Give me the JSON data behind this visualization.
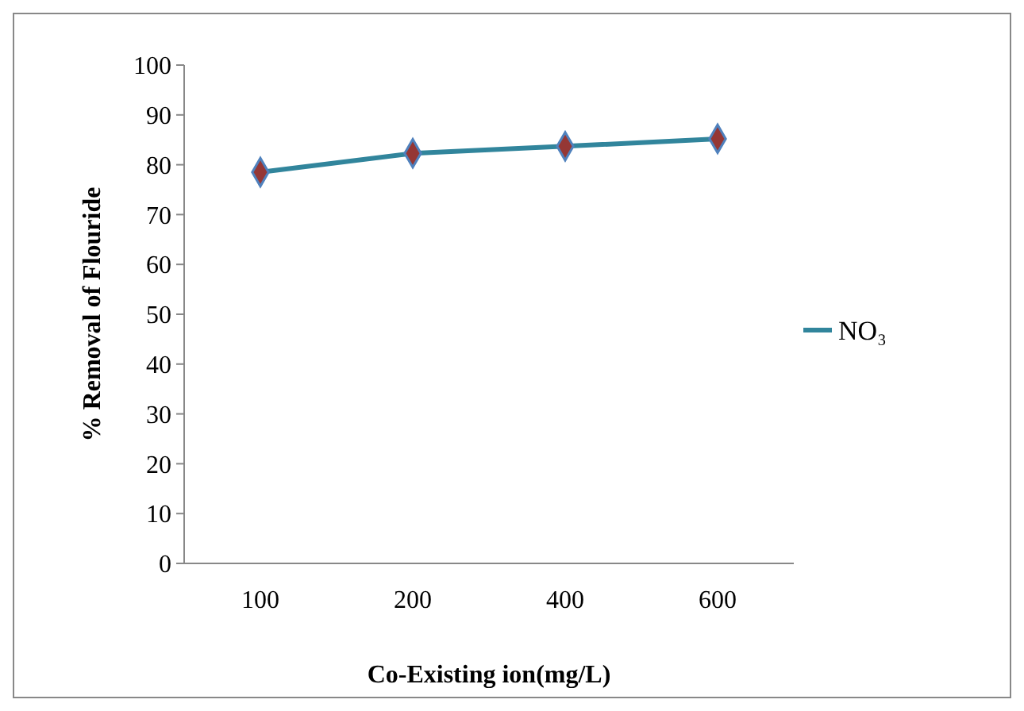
{
  "chart_data": {
    "type": "line",
    "xlabel": "Co-Existing ion(mg/L)",
    "ylabel": "% Removal of Flouride",
    "categories": [
      "100",
      "200",
      "400",
      "600"
    ],
    "series": [
      {
        "name": "NO₃",
        "color": "#31859c",
        "values": [
          78.5,
          82.3,
          83.7,
          85.2
        ]
      }
    ],
    "ylim": [
      0,
      100
    ],
    "yticks": [
      0,
      10,
      20,
      30,
      40,
      50,
      60,
      70,
      80,
      90,
      100
    ],
    "marker": "diamond",
    "legend": "right",
    "grid": false
  }
}
